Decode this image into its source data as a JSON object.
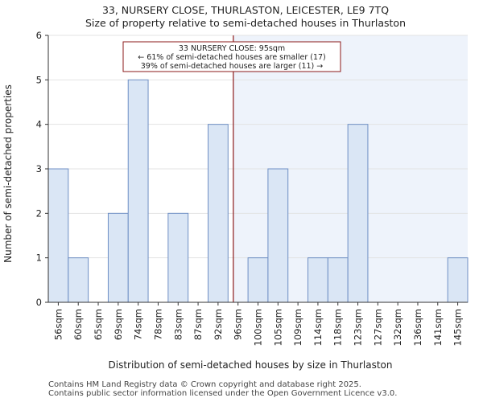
{
  "chart_data": {
    "type": "bar",
    "title": "33, NURSERY CLOSE, THURLASTON, LEICESTER, LE9 7TQ",
    "subtitle": "Size of property relative to semi-detached houses in Thurlaston",
    "xlabel": "Distribution of semi-detached houses by size in Thurlaston",
    "ylabel": "Number of semi-detached properties",
    "categories": [
      "56sqm",
      "60sqm",
      "65sqm",
      "69sqm",
      "74sqm",
      "78sqm",
      "83sqm",
      "87sqm",
      "92sqm",
      "96sqm",
      "100sqm",
      "105sqm",
      "109sqm",
      "114sqm",
      "118sqm",
      "123sqm",
      "127sqm",
      "132sqm",
      "136sqm",
      "141sqm",
      "145sqm"
    ],
    "values": [
      3,
      1,
      0,
      2,
      5,
      0,
      2,
      0,
      4,
      0,
      1,
      3,
      0,
      1,
      1,
      4,
      0,
      0,
      0,
      0,
      1
    ],
    "ylim": [
      0,
      6
    ],
    "yticks": [
      0,
      1,
      2,
      3,
      4,
      5,
      6
    ],
    "marker": {
      "value_sqm": 95,
      "label_line1": "33 NURSERY CLOSE: 95sqm",
      "label_line2": "← 61% of semi-detached houses are smaller (17)",
      "label_line3": "39% of semi-detached houses are larger (11) →"
    },
    "colors": {
      "bar_fill": "#dae6f5",
      "bar_stroke": "#6f8fc4",
      "highlight_bg": "#eef3fb",
      "marker_line": "#8b1a1a"
    }
  },
  "footer": {
    "line1": "Contains HM Land Registry data © Crown copyright and database right 2025.",
    "line2": "Contains public sector information licensed under the Open Government Licence v3.0."
  }
}
